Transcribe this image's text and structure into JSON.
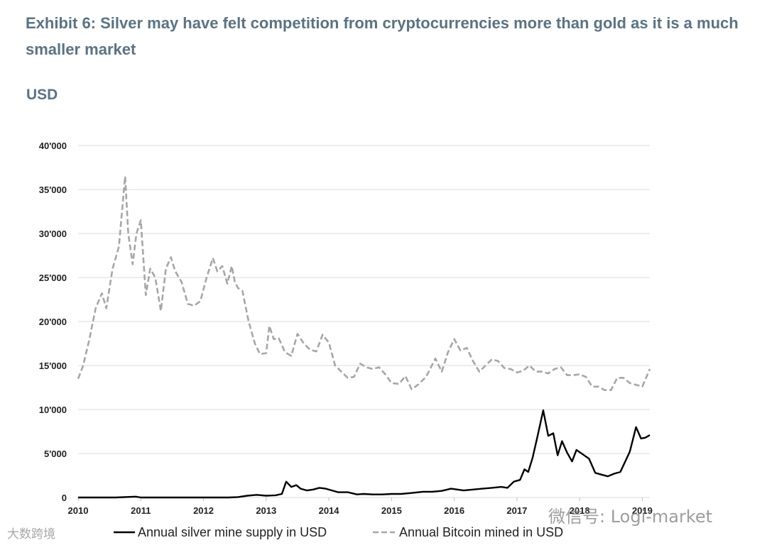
{
  "header": {
    "title": "Exhibit 6: Silver may have felt competition from cryptocurrencies more than gold as it is a much smaller market",
    "unit": "USD"
  },
  "watermarks": {
    "left": "大数跨境",
    "right": "微信号: Logi-market"
  },
  "colors": {
    "title": "#5a7382",
    "silver_line": "#000000",
    "bitcoin_line": "#a6a6a6",
    "grid": "#d9d9d9"
  },
  "chart_data": {
    "type": "line",
    "title": "",
    "xlabel": "",
    "ylabel": "USD",
    "xlim": [
      2010.0,
      2019.12
    ],
    "ylim": [
      0,
      40000
    ],
    "x_ticks": [
      "2010",
      "2011",
      "2012",
      "2013",
      "2014",
      "2015",
      "2016",
      "2017",
      "2018",
      "2019"
    ],
    "y_ticks": [
      "0",
      "5'000",
      "10'000",
      "15'000",
      "20'000",
      "25'000",
      "30'000",
      "35'000",
      "40'000"
    ],
    "legend_position": "bottom",
    "series": [
      {
        "name": "Annual silver mine supply in USD",
        "style": "solid",
        "x": [
          2010.0,
          2010.6,
          2010.92,
          2011.0,
          2011.1,
          2011.5,
          2012.0,
          2012.4,
          2012.55,
          2012.7,
          2012.85,
          2013.0,
          2013.15,
          2013.25,
          2013.32,
          2013.4,
          2013.48,
          2013.55,
          2013.65,
          2013.75,
          2013.85,
          2013.95,
          2014.05,
          2014.15,
          2014.3,
          2014.45,
          2014.55,
          2014.7,
          2014.85,
          2015.0,
          2015.15,
          2015.3,
          2015.5,
          2015.65,
          2015.8,
          2015.95,
          2016.05,
          2016.15,
          2016.3,
          2016.45,
          2016.6,
          2016.75,
          2016.85,
          2016.95,
          2017.05,
          2017.12,
          2017.18,
          2017.25,
          2017.33,
          2017.42,
          2017.5,
          2017.58,
          2017.65,
          2017.72,
          2017.8,
          2017.88,
          2017.95,
          2018.05,
          2018.15,
          2018.25,
          2018.35,
          2018.45,
          2018.55,
          2018.65,
          2018.8,
          2018.9,
          2018.98,
          2019.05,
          2019.12
        ],
        "values": [
          0,
          0,
          100,
          0,
          0,
          0,
          0,
          0,
          50,
          200,
          300,
          200,
          250,
          400,
          1800,
          1200,
          1400,
          1000,
          800,
          900,
          1100,
          1000,
          800,
          600,
          600,
          350,
          400,
          350,
          350,
          400,
          400,
          500,
          650,
          650,
          750,
          1000,
          900,
          800,
          900,
          1000,
          1100,
          1200,
          1100,
          1800,
          2000,
          3200,
          2900,
          4500,
          7000,
          9900,
          7000,
          7300,
          4800,
          6400,
          5100,
          4100,
          5400,
          4900,
          4400,
          2800,
          2600,
          2400,
          2700,
          2900,
          5200,
          8000,
          6700,
          6800,
          7100
        ]
      },
      {
        "name": "Annual Bitcoin mined in USD",
        "style": "dashed",
        "x": [
          2010.0,
          2010.08,
          2010.18,
          2010.28,
          2010.38,
          2010.45,
          2010.55,
          2010.65,
          2010.75,
          2010.8,
          2010.87,
          2010.93,
          2011.0,
          2011.08,
          2011.15,
          2011.23,
          2011.32,
          2011.4,
          2011.48,
          2011.55,
          2011.65,
          2011.75,
          2011.85,
          2011.95,
          2012.05,
          2012.15,
          2012.22,
          2012.3,
          2012.38,
          2012.45,
          2012.5,
          2012.55,
          2012.62,
          2012.72,
          2012.82,
          2012.9,
          2013.0,
          2013.05,
          2013.12,
          2013.2,
          2013.3,
          2013.4,
          2013.5,
          2013.6,
          2013.7,
          2013.8,
          2013.9,
          2014.0,
          2014.1,
          2014.2,
          2014.3,
          2014.4,
          2014.5,
          2014.6,
          2014.7,
          2014.8,
          2014.9,
          2015.0,
          2015.12,
          2015.22,
          2015.32,
          2015.42,
          2015.55,
          2015.7,
          2015.8,
          2015.9,
          2016.0,
          2016.1,
          2016.2,
          2016.3,
          2016.4,
          2016.5,
          2016.6,
          2016.7,
          2016.8,
          2016.9,
          2017.0,
          2017.1,
          2017.2,
          2017.3,
          2017.4,
          2017.5,
          2017.6,
          2017.7,
          2017.8,
          2017.9,
          2018.0,
          2018.1,
          2018.2,
          2018.3,
          2018.4,
          2018.5,
          2018.6,
          2018.7,
          2018.8,
          2018.9,
          2019.0,
          2019.12
        ],
        "values": [
          13500,
          15000,
          18000,
          21500,
          23200,
          21500,
          26000,
          28500,
          36500,
          30000,
          26500,
          30000,
          31500,
          23000,
          26000,
          25000,
          21200,
          26000,
          27300,
          25700,
          24500,
          22000,
          21800,
          22300,
          25000,
          27200,
          25700,
          26300,
          24300,
          26300,
          24500,
          23800,
          23500,
          20000,
          17500,
          16300,
          16400,
          19500,
          18000,
          18100,
          16500,
          16100,
          18600,
          17500,
          16800,
          16600,
          18500,
          17600,
          15000,
          14300,
          13600,
          13700,
          15200,
          14800,
          14600,
          14800,
          14000,
          13000,
          12900,
          13800,
          12300,
          12800,
          13700,
          15800,
          14300,
          16500,
          18000,
          16700,
          17000,
          15500,
          14300,
          15000,
          15700,
          15500,
          14700,
          14600,
          14200,
          14400,
          15000,
          14300,
          14300,
          14100,
          14600,
          14800,
          13900,
          13900,
          14000,
          13700,
          12600,
          12600,
          12200,
          12200,
          13600,
          13600,
          13000,
          12800,
          12600,
          14600
        ]
      }
    ]
  }
}
